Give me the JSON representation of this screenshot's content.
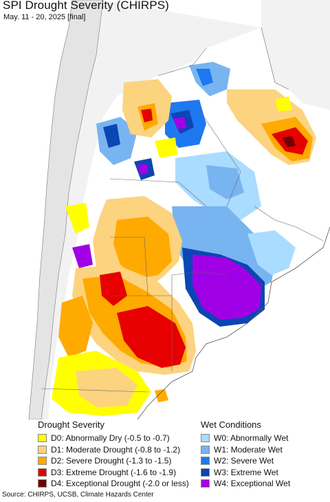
{
  "header": {
    "title": "SPI Drought Severity (CHIRPS)",
    "subtitle": "May. 11 - 20, 2025 [final]"
  },
  "legend": {
    "dry_heading": "Drought Severity",
    "wet_heading": "Wet Conditions",
    "dry_items": [
      {
        "label": "D0: Abnormally Dry (-0.5 to -0.7)",
        "color": "#ffff00"
      },
      {
        "label": "D1: Moderate Drought (-0.8 to -1.2)",
        "color": "#fcd37f"
      },
      {
        "label": "D2: Severe Drought (-1.3 to -1.5)",
        "color": "#ffaa00"
      },
      {
        "label": "D3: Extreme Drought (-1.6 to -1.9)",
        "color": "#e60000"
      },
      {
        "label": "D4: Exceptional Drought (-2.0 or less)",
        "color": "#730000"
      }
    ],
    "wet_items": [
      {
        "label": "W0: Abnormally Wet",
        "color": "#aadcff"
      },
      {
        "label": "W1: Moderate Wet",
        "color": "#78b4f0"
      },
      {
        "label": "W2: Severe Wet",
        "color": "#1e78f0"
      },
      {
        "label": "W3: Extreme Wet",
        "color": "#0a46b4"
      },
      {
        "label": "W4: Exceptional Wet",
        "color": "#a000e6"
      }
    ]
  },
  "footer": {
    "source": "Source: CHIRPS, UCSB, Climate Hazards Center"
  }
}
